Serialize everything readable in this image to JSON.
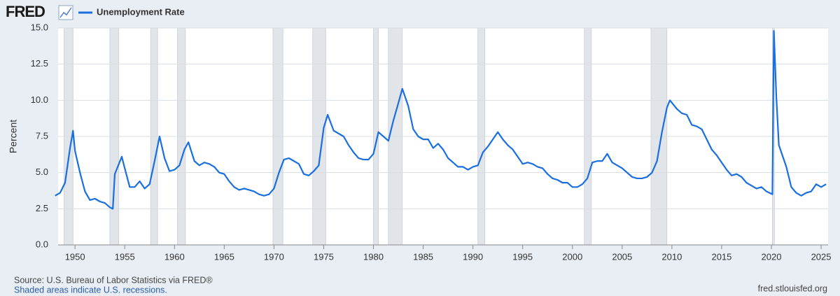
{
  "chart_data": {
    "type": "line",
    "logo": "FRED",
    "y_label": "Percent",
    "source": "Source: U.S. Bureau of Labor Statistics via FRED®",
    "note": "Shaded areas indicate U.S. recessions.",
    "website": "fred.stlouisfed.org",
    "x": [
      1948.0,
      1948.5,
      1949.0,
      1949.5,
      1949.8,
      1950.0,
      1950.5,
      1951.0,
      1951.5,
      1952.0,
      1952.5,
      1953.0,
      1953.5,
      1953.8,
      1954.0,
      1954.7,
      1955.0,
      1955.5,
      1956.0,
      1956.5,
      1957.0,
      1957.5,
      1958.0,
      1958.5,
      1959.0,
      1959.5,
      1960.0,
      1960.5,
      1961.0,
      1961.4,
      1962.0,
      1962.5,
      1963.0,
      1963.5,
      1964.0,
      1964.5,
      1965.0,
      1965.5,
      1966.0,
      1966.5,
      1967.0,
      1967.5,
      1968.0,
      1968.5,
      1969.0,
      1969.5,
      1970.0,
      1970.5,
      1971.0,
      1971.5,
      1972.0,
      1972.5,
      1973.0,
      1973.5,
      1974.0,
      1974.5,
      1975.0,
      1975.4,
      1976.0,
      1976.5,
      1977.0,
      1977.5,
      1978.0,
      1978.5,
      1979.0,
      1979.5,
      1980.0,
      1980.5,
      1981.0,
      1981.5,
      1982.0,
      1982.5,
      1982.9,
      1983.5,
      1984.0,
      1984.5,
      1985.0,
      1985.5,
      1986.0,
      1986.5,
      1987.0,
      1987.5,
      1988.0,
      1988.5,
      1989.0,
      1989.5,
      1990.0,
      1990.5,
      1991.0,
      1991.5,
      1992.0,
      1992.5,
      1993.0,
      1993.5,
      1994.0,
      1994.5,
      1995.0,
      1995.5,
      1996.0,
      1996.5,
      1997.0,
      1997.5,
      1998.0,
      1998.5,
      1999.0,
      1999.5,
      2000.0,
      2000.5,
      2001.0,
      2001.5,
      2002.0,
      2002.5,
      2003.0,
      2003.5,
      2004.0,
      2004.5,
      2005.0,
      2005.5,
      2006.0,
      2006.5,
      2007.0,
      2007.5,
      2008.0,
      2008.5,
      2009.0,
      2009.5,
      2009.8,
      2010.5,
      2011.0,
      2011.5,
      2012.0,
      2012.5,
      2013.0,
      2013.5,
      2014.0,
      2014.5,
      2015.0,
      2015.5,
      2016.0,
      2016.5,
      2017.0,
      2017.5,
      2018.0,
      2018.5,
      2019.0,
      2019.5,
      2020.1,
      2020.25,
      2020.5,
      2020.75,
      2021.0,
      2021.5,
      2022.0,
      2022.5,
      2023.0,
      2023.5,
      2024.0,
      2024.5,
      2025.0,
      2025.5
    ],
    "series": [
      {
        "name": "Unemployment Rate",
        "color": "#1a6fdf",
        "values": [
          3.4,
          3.6,
          4.3,
          6.7,
          7.9,
          6.5,
          5.0,
          3.7,
          3.1,
          3.2,
          3.0,
          2.9,
          2.6,
          2.5,
          4.9,
          6.1,
          5.3,
          4.0,
          4.0,
          4.4,
          3.9,
          4.2,
          5.8,
          7.5,
          6.0,
          5.1,
          5.2,
          5.5,
          6.6,
          7.1,
          5.8,
          5.5,
          5.7,
          5.6,
          5.4,
          5.0,
          4.9,
          4.4,
          4.0,
          3.8,
          3.9,
          3.8,
          3.7,
          3.5,
          3.4,
          3.5,
          3.9,
          5.0,
          5.9,
          6.0,
          5.8,
          5.6,
          4.9,
          4.8,
          5.1,
          5.5,
          8.1,
          9.0,
          7.9,
          7.7,
          7.5,
          6.9,
          6.4,
          6.0,
          5.9,
          5.9,
          6.3,
          7.8,
          7.5,
          7.2,
          8.6,
          9.8,
          10.8,
          9.6,
          8.0,
          7.5,
          7.3,
          7.3,
          6.7,
          7.0,
          6.6,
          6.0,
          5.7,
          5.4,
          5.4,
          5.2,
          5.4,
          5.5,
          6.4,
          6.8,
          7.3,
          7.8,
          7.3,
          6.9,
          6.6,
          6.1,
          5.6,
          5.7,
          5.6,
          5.4,
          5.3,
          4.9,
          4.6,
          4.5,
          4.3,
          4.3,
          4.0,
          4.0,
          4.2,
          4.6,
          5.7,
          5.8,
          5.8,
          6.3,
          5.7,
          5.5,
          5.3,
          5.0,
          4.7,
          4.6,
          4.6,
          4.7,
          5.0,
          5.8,
          7.8,
          9.5,
          10.0,
          9.4,
          9.1,
          9.0,
          8.3,
          8.2,
          8.0,
          7.3,
          6.6,
          6.2,
          5.7,
          5.2,
          4.8,
          4.9,
          4.7,
          4.3,
          4.1,
          3.9,
          4.0,
          3.7,
          3.5,
          14.8,
          10.2,
          6.9,
          6.4,
          5.4,
          4.0,
          3.6,
          3.4,
          3.6,
          3.7,
          4.2,
          4.0,
          4.2
        ]
      }
    ],
    "recessions": [
      [
        1948.9,
        1949.8
      ],
      [
        1953.5,
        1954.4
      ],
      [
        1957.6,
        1958.3
      ],
      [
        1960.3,
        1961.1
      ],
      [
        1969.9,
        1970.9
      ],
      [
        1973.9,
        1975.2
      ],
      [
        1980.0,
        1980.5
      ],
      [
        1981.5,
        1982.9
      ],
      [
        1990.5,
        1991.2
      ],
      [
        2001.2,
        2001.9
      ],
      [
        2007.9,
        2009.5
      ],
      [
        2020.1,
        2020.3
      ]
    ],
    "recession_color": "#e1e5ea",
    "xlim": [
      1948.3,
      2025.7
    ],
    "xticks": [
      1950,
      1955,
      1960,
      1965,
      1970,
      1975,
      1980,
      1985,
      1990,
      1995,
      2000,
      2005,
      2010,
      2015,
      2020,
      2025
    ],
    "ylim": [
      0,
      15
    ],
    "yticks": [
      {
        "value": 0,
        "label": "0.0"
      },
      {
        "value": 2.5,
        "label": "2.5"
      },
      {
        "value": 5,
        "label": "5.0"
      },
      {
        "value": 7.5,
        "label": "7.5"
      },
      {
        "value": 10,
        "label": "10.0"
      },
      {
        "value": 12.5,
        "label": "12.5"
      },
      {
        "value": 15,
        "label": "15.0"
      }
    ],
    "grid": true
  }
}
